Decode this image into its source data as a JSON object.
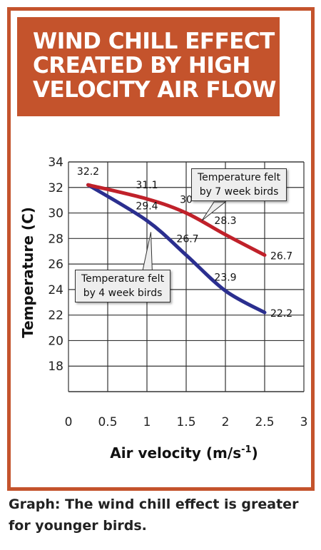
{
  "title_lines": [
    "WIND CHILL EFFECT",
    "CREATED BY HIGH",
    "VELOCITY AIR FLOW"
  ],
  "caption_lines": [
    "Graph: The wind chill effect is greater",
    "for younger birds."
  ],
  "colors": {
    "frame": "#c4532c",
    "series_7wk": "#c0212a",
    "series_4wk": "#2b2f8f",
    "grid": "#333333"
  },
  "chart_data": {
    "type": "line",
    "xlabel": "Air velocity (m/s",
    "xlabel_sup": "-1",
    "xlabel_end": ")",
    "ylabel": "Temperature (C)",
    "xlim": [
      0,
      3
    ],
    "ylim": [
      16,
      34
    ],
    "x_ticks": [
      "0",
      "0.5",
      "1",
      "1.5",
      "2",
      "2.5",
      "3"
    ],
    "y_ticks": [
      "18",
      "20",
      "22",
      "24",
      "26",
      "28",
      "30",
      "32",
      "34"
    ],
    "grid": true,
    "series": [
      {
        "name": "Temperature felt by 7 week birds",
        "label_lines": [
          "Temperature felt",
          "by 7 week birds"
        ],
        "x": [
          0.25,
          1.0,
          1.5,
          2.0,
          2.5
        ],
        "values": [
          32.2,
          31.1,
          30,
          28.3,
          26.7
        ],
        "labels": [
          "32.2",
          "31.1",
          "30",
          "28.3",
          "26.7"
        ]
      },
      {
        "name": "Temperature felt by 4 week birds",
        "label_lines": [
          "Temperature felt",
          "by 4 week birds"
        ],
        "x": [
          0.25,
          1.0,
          1.5,
          2.0,
          2.5
        ],
        "values": [
          32.2,
          29.4,
          26.7,
          23.9,
          22.2
        ],
        "labels": [
          "32.2",
          "29.4",
          "26.7",
          "23.9",
          "22.2"
        ]
      }
    ]
  }
}
